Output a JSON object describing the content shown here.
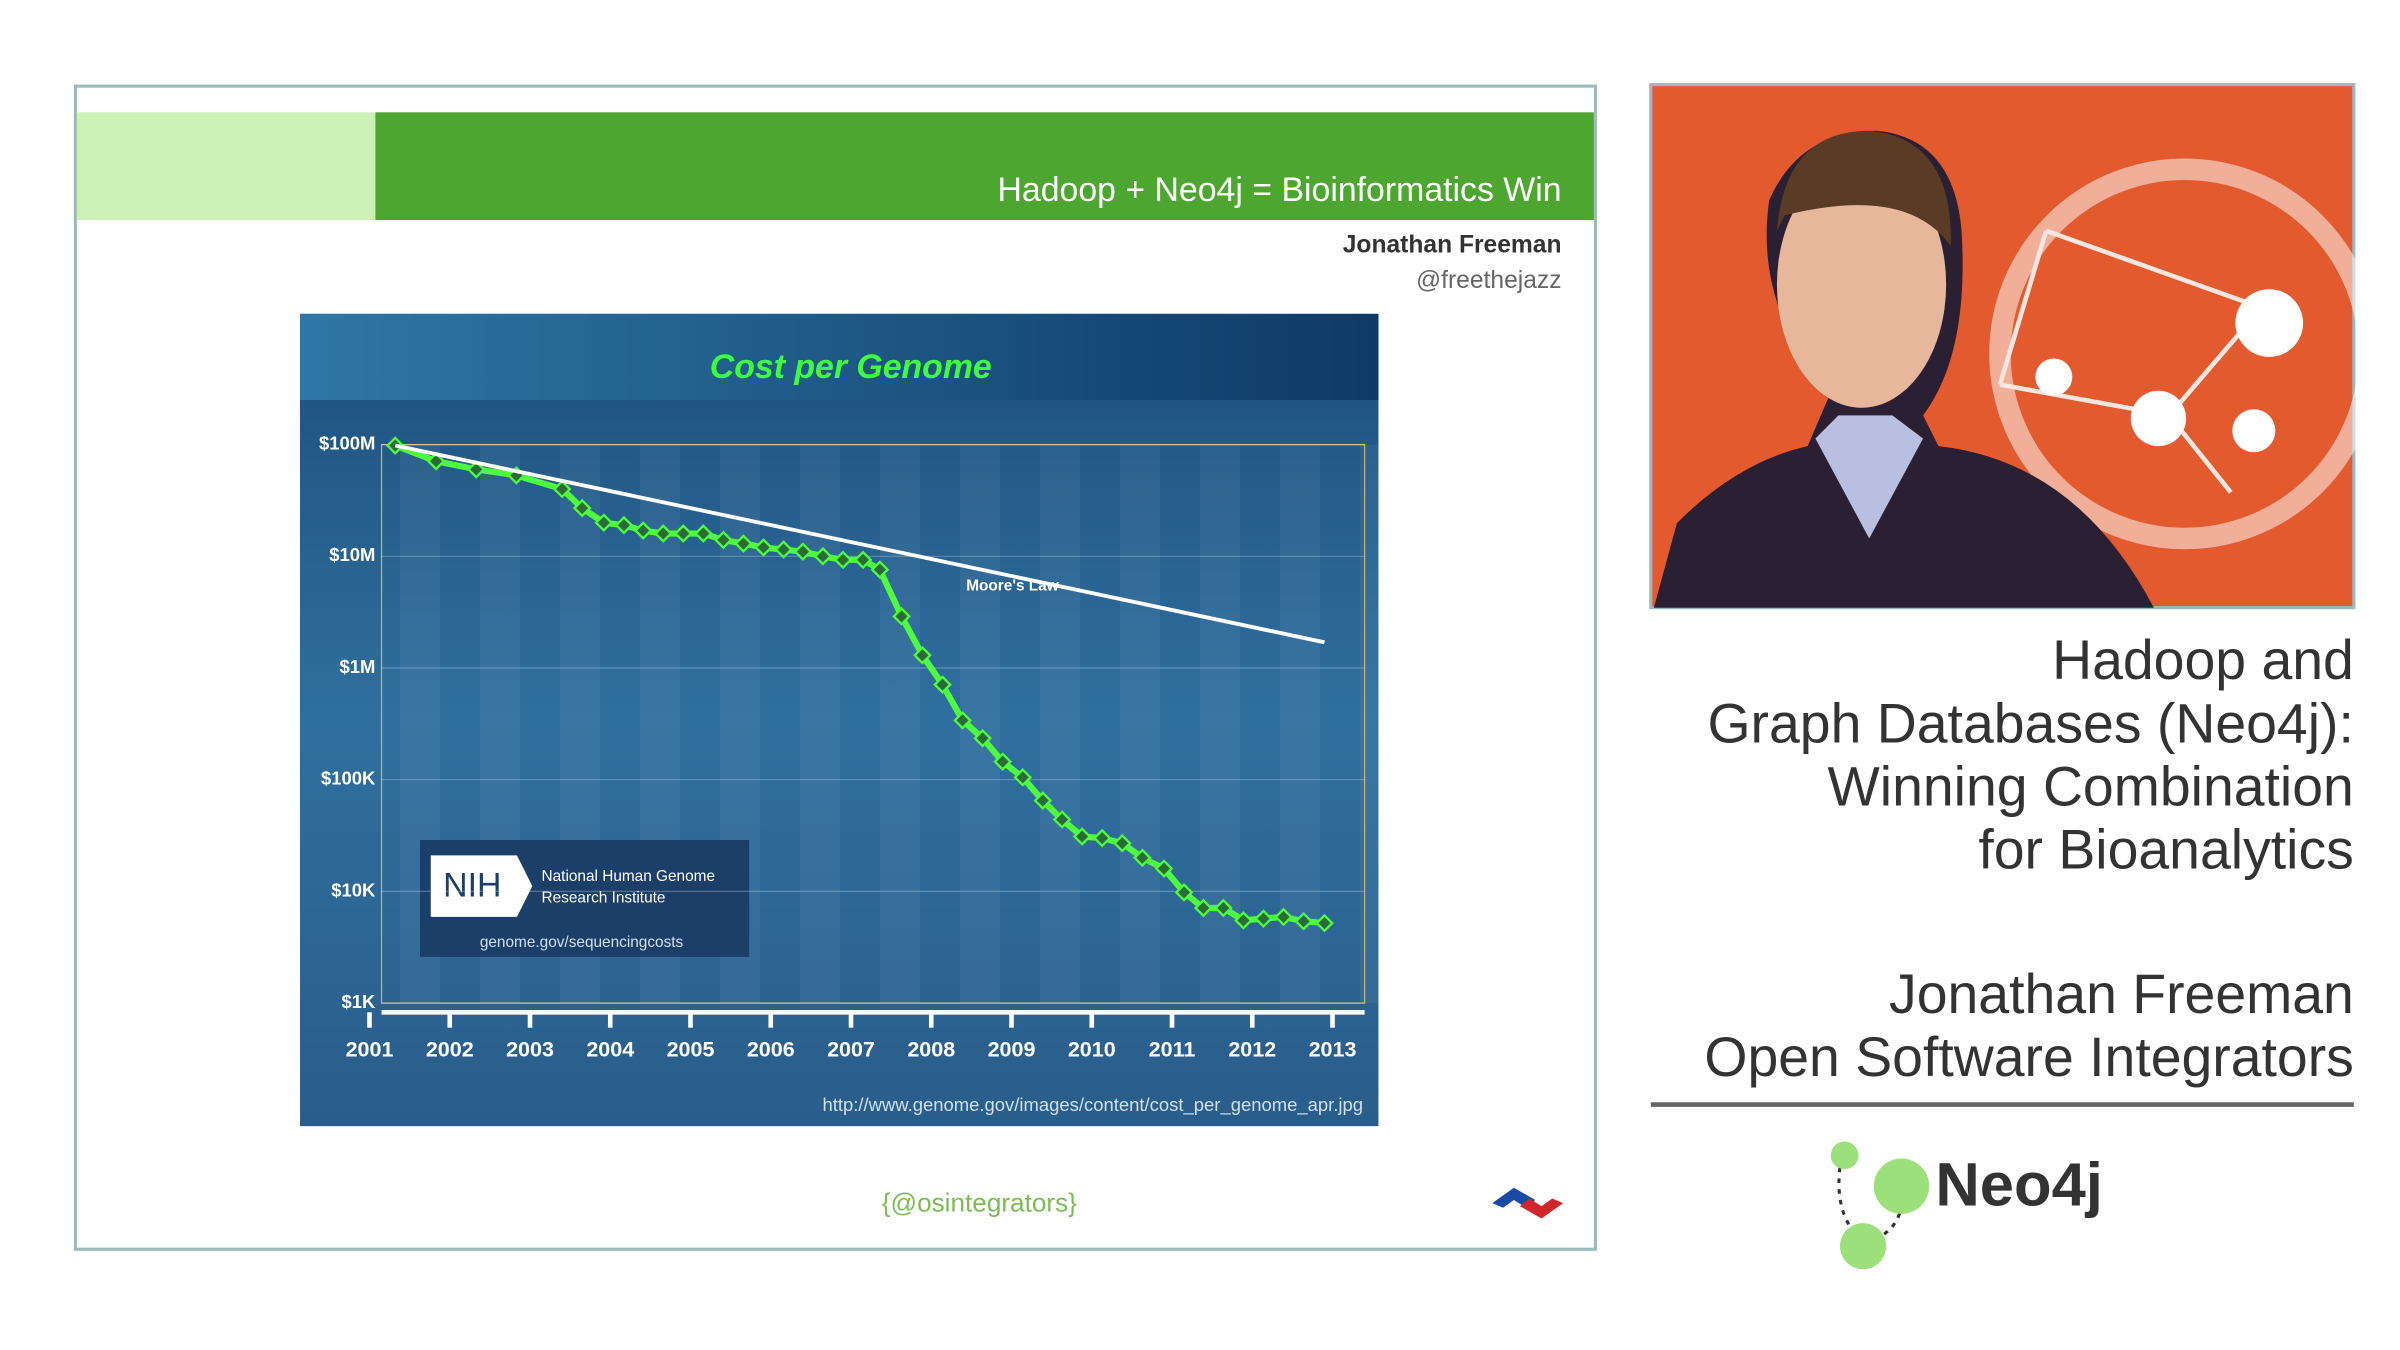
{
  "slide": {
    "title": "Hadoop + Neo4j = Bioinformatics Win",
    "author": "Jonathan Freeman",
    "handle": "@freethejazz",
    "footer": "{@osintegrators}",
    "nih": {
      "logo": "NIH",
      "name_lines": [
        "National Human Genome",
        "Research Institute"
      ],
      "url": "genome.gov/sequencingcosts"
    },
    "source": "http://www.genome.gov/images/content/cost_per_genome_apr.jpg"
  },
  "chart_data": {
    "type": "line",
    "title": "Cost per Genome",
    "log_y": true,
    "grid": true,
    "xlim": [
      2001.15,
      2013.4
    ],
    "xticks": [
      2001,
      2002,
      2003,
      2004,
      2005,
      2006,
      2007,
      2008,
      2009,
      2010,
      2011,
      2012,
      2013
    ],
    "ylim": [
      1000,
      100000000
    ],
    "yticks": [
      {
        "value": 1000,
        "label": "$1K"
      },
      {
        "value": 10000,
        "label": "$10K"
      },
      {
        "value": 100000,
        "label": "$100K"
      },
      {
        "value": 1000000,
        "label": "$1M"
      },
      {
        "value": 10000000,
        "label": "$10M"
      },
      {
        "value": 100000000,
        "label": "$100M"
      }
    ],
    "series": [
      {
        "color": "#4dff3c",
        "x": [
          2001.32,
          2001.83,
          2002.33,
          2002.83,
          2003.4,
          2003.65,
          2003.92,
          2004.17,
          2004.41,
          2004.66,
          2004.91,
          2005.16,
          2005.41,
          2005.66,
          2005.91,
          2006.16,
          2006.4,
          2006.65,
          2006.9,
          2007.15,
          2007.36,
          2007.63,
          2007.89,
          2008.14,
          2008.39,
          2008.64,
          2008.89,
          2009.14,
          2009.39,
          2009.63,
          2009.88,
          2010.13,
          2010.38,
          2010.63,
          2010.9,
          2011.15,
          2011.39,
          2011.64,
          2011.89,
          2012.14,
          2012.39,
          2012.64,
          2012.9
        ],
        "values": [
          98000000,
          71000000,
          60000000,
          53000000,
          40000000,
          27000000,
          20000000,
          19000000,
          17000000,
          16000000,
          16000000,
          16000000,
          14000000,
          13000000,
          12000000,
          11500000,
          11000000,
          10000000,
          9300000,
          9300000,
          7600000,
          2900000,
          1300000,
          710000,
          340000,
          235000,
          145000,
          105000,
          65000,
          44000,
          31000,
          30000,
          27000,
          20000,
          16000,
          9800,
          7100,
          7100,
          5500,
          5700,
          5900,
          5400,
          5200
        ]
      },
      {
        "name": "Moore's Law",
        "color": "#ffffff",
        "x": [
          2001.32,
          2012.9
        ],
        "values": [
          98000000,
          1700000
        ]
      }
    ]
  },
  "talk": {
    "title_lines": [
      "Hadoop and",
      "Graph Databases (Neo4j):",
      "Winning Combination",
      "for Bioanalytics"
    ],
    "speaker_lines": [
      "Jonathan Freeman",
      "Open Software Integrators"
    ],
    "logo": "Neo4j"
  }
}
